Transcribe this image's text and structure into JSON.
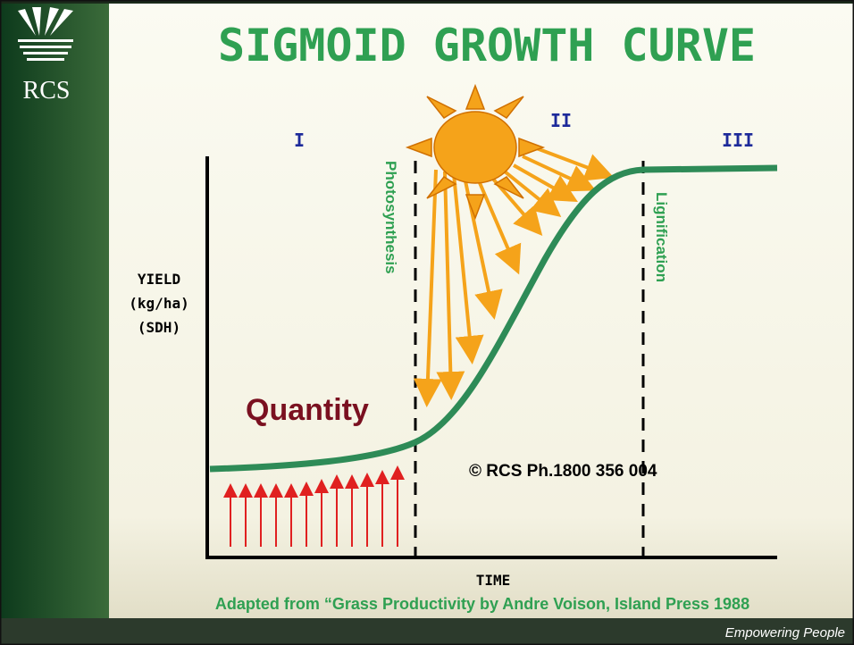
{
  "logo": {
    "text": "RCS"
  },
  "header": {
    "title": "SIGMOID GROWTH CURVE"
  },
  "phases": [
    "I",
    "II",
    "III"
  ],
  "stages": {
    "left": "Photosynthesis",
    "right": "Lignification"
  },
  "y_axis": {
    "lines": [
      "YIELD",
      "(kg/ha)",
      "(SDH)"
    ]
  },
  "x_axis": {
    "label": "TIME"
  },
  "annotations": {
    "quantity": "Quantity",
    "copyright": "© RCS Ph.1800 356 004"
  },
  "footer": {
    "source": "Adapted from “Grass Productivity by Andre Voison, Island Press 1988",
    "tagline": "Empowering People"
  }
}
